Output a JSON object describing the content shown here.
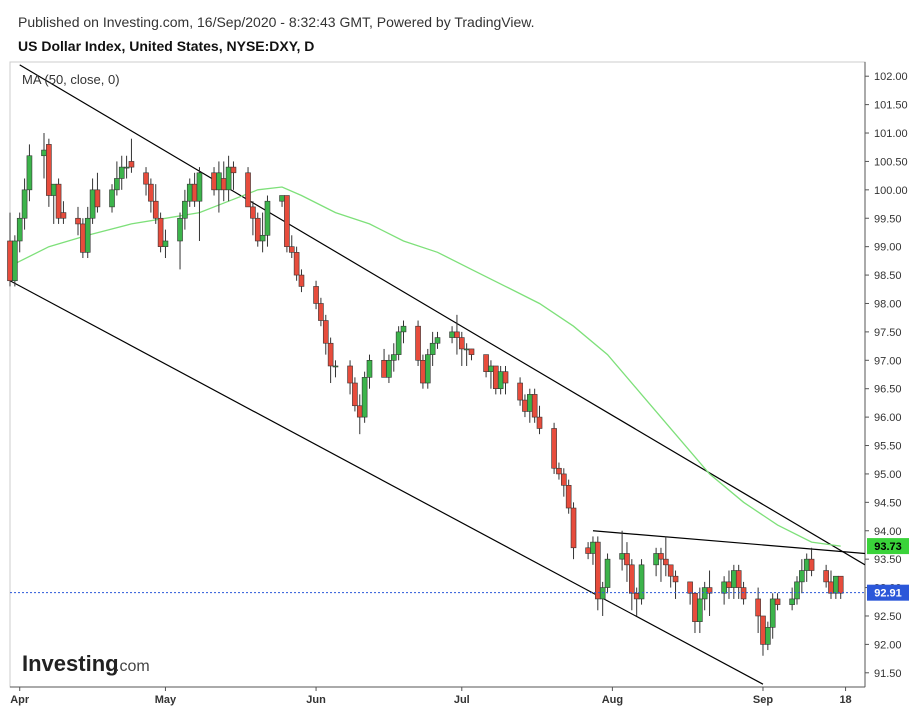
{
  "header": {
    "published": "Published on Investing.com, 16/Sep/2020 - 8:32:43 GMT, Powered by TradingView.",
    "title": "US Dollar Index, United States, NYSE:DXY, D"
  },
  "logo": {
    "main": "Investing",
    "suffix": ".com"
  },
  "chart_data": {
    "type": "candlestick",
    "indicator_label": "MA (50, close, 0)",
    "y_range": [
      91.25,
      102.25
    ],
    "y_ticks": [
      91.5,
      92.0,
      92.5,
      93.0,
      93.5,
      94.0,
      94.5,
      95.0,
      95.5,
      96.0,
      96.5,
      97.0,
      97.5,
      98.0,
      98.5,
      99.0,
      99.5,
      100.0,
      100.5,
      101.0,
      101.5,
      102.0
    ],
    "y_tick_labels": [
      "91.50",
      "92.00",
      "92.50",
      "93.00",
      "93.50",
      "94.00",
      "94.50",
      "95.00",
      "95.50",
      "96.00",
      "96.50",
      "97.00",
      "97.50",
      "98.00",
      "98.50",
      "99.00",
      "99.50",
      "100.00",
      "100.50",
      "101.00",
      "101.50",
      "102.00"
    ],
    "x_range": [
      "2020-03-30",
      "2020-09-22"
    ],
    "x_labels": [
      {
        "label": "Apr",
        "date": "2020-04-01"
      },
      {
        "label": "May",
        "date": "2020-05-01"
      },
      {
        "label": "Jun",
        "date": "2020-06-01"
      },
      {
        "label": "Jul",
        "date": "2020-07-01"
      },
      {
        "label": "Aug",
        "date": "2020-08-01"
      },
      {
        "label": "Sep",
        "date": "2020-09-01"
      },
      {
        "label": "18",
        "date": "2020-09-18"
      }
    ],
    "price_tags": [
      {
        "label": "93.73",
        "value": 93.73,
        "color": "#3ad33a",
        "text_color": "#000000"
      },
      {
        "label": "92.91",
        "value": 92.91,
        "color": "#2b57d9",
        "text_color": "#ffffff"
      }
    ],
    "last_price": 92.91,
    "colors": {
      "up": "#3cb44b",
      "down": "#e74c3c",
      "ma": "#7ee07a",
      "trendline": "#000000",
      "last_line": "#2b57d9"
    },
    "candles": [
      [
        "2020-03-30",
        99.1,
        99.6,
        98.3,
        98.4
      ],
      [
        "2020-03-31",
        98.4,
        99.2,
        98.3,
        99.1
      ],
      [
        "2020-04-01",
        99.1,
        99.6,
        98.9,
        99.5
      ],
      [
        "2020-04-02",
        99.5,
        100.2,
        99.3,
        100.0
      ],
      [
        "2020-04-03",
        100.0,
        100.8,
        99.8,
        100.6
      ],
      [
        "2020-04-06",
        100.6,
        101.0,
        100.2,
        100.7
      ],
      [
        "2020-04-07",
        100.8,
        100.9,
        99.7,
        99.9
      ],
      [
        "2020-04-08",
        99.9,
        100.1,
        99.4,
        100.1
      ],
      [
        "2020-04-09",
        100.1,
        100.2,
        99.4,
        99.5
      ],
      [
        "2020-04-10",
        99.6,
        99.8,
        99.4,
        99.5
      ],
      [
        "2020-04-13",
        99.5,
        99.7,
        99.2,
        99.4
      ],
      [
        "2020-04-14",
        99.4,
        99.5,
        98.8,
        98.9
      ],
      [
        "2020-04-15",
        98.9,
        99.7,
        98.8,
        99.5
      ],
      [
        "2020-04-16",
        99.5,
        100.2,
        99.4,
        100.0
      ],
      [
        "2020-04-17",
        100.0,
        100.3,
        99.6,
        99.7
      ],
      [
        "2020-04-20",
        99.7,
        100.1,
        99.6,
        100.0
      ],
      [
        "2020-04-21",
        100.0,
        100.5,
        99.9,
        100.2
      ],
      [
        "2020-04-22",
        100.2,
        100.6,
        100.0,
        100.4
      ],
      [
        "2020-04-23",
        100.4,
        100.6,
        100.2,
        100.4
      ],
      [
        "2020-04-24",
        100.5,
        100.9,
        100.3,
        100.4
      ],
      [
        "2020-04-27",
        100.3,
        100.4,
        99.9,
        100.1
      ],
      [
        "2020-04-28",
        100.1,
        100.2,
        99.6,
        99.8
      ],
      [
        "2020-04-29",
        99.8,
        100.1,
        99.4,
        99.5
      ],
      [
        "2020-04-30",
        99.5,
        99.6,
        98.9,
        99.0
      ],
      [
        "2020-05-01",
        99.0,
        99.3,
        98.8,
        99.1
      ],
      [
        "2020-05-04",
        99.1,
        99.6,
        98.6,
        99.5
      ],
      [
        "2020-05-05",
        99.5,
        100.0,
        99.3,
        99.8
      ],
      [
        "2020-05-06",
        99.8,
        100.2,
        99.7,
        100.1
      ],
      [
        "2020-05-07",
        100.1,
        100.3,
        99.7,
        99.8
      ],
      [
        "2020-05-08",
        99.8,
        100.4,
        99.1,
        100.3
      ],
      [
        "2020-05-11",
        100.3,
        100.4,
        99.9,
        100.0
      ],
      [
        "2020-05-12",
        100.0,
        100.5,
        99.6,
        100.3
      ],
      [
        "2020-05-13",
        100.2,
        100.5,
        99.8,
        100.0
      ],
      [
        "2020-05-14",
        100.0,
        100.6,
        99.8,
        100.4
      ],
      [
        "2020-05-15",
        100.4,
        100.5,
        100.0,
        100.3
      ],
      [
        "2020-05-18",
        100.3,
        100.4,
        99.7,
        99.7
      ],
      [
        "2020-05-19",
        99.7,
        99.8,
        99.2,
        99.5
      ],
      [
        "2020-05-20",
        99.5,
        99.6,
        99.0,
        99.1
      ],
      [
        "2020-05-21",
        99.1,
        99.6,
        98.9,
        99.2
      ],
      [
        "2020-05-22",
        99.2,
        99.9,
        99.0,
        99.8
      ],
      [
        "2020-05-25",
        99.8,
        99.9,
        99.7,
        99.9
      ],
      [
        "2020-05-26",
        99.9,
        99.9,
        98.9,
        99.0
      ],
      [
        "2020-05-27",
        99.0,
        99.2,
        98.8,
        98.9
      ],
      [
        "2020-05-28",
        98.9,
        99.0,
        98.4,
        98.5
      ],
      [
        "2020-05-29",
        98.5,
        98.6,
        98.2,
        98.3
      ],
      [
        "2020-06-01",
        98.3,
        98.4,
        97.9,
        98.0
      ],
      [
        "2020-06-02",
        98.0,
        98.1,
        97.6,
        97.7
      ],
      [
        "2020-06-03",
        97.7,
        97.8,
        97.1,
        97.3
      ],
      [
        "2020-06-04",
        97.3,
        97.4,
        96.6,
        96.9
      ],
      [
        "2020-06-05",
        96.9,
        97.0,
        96.7,
        96.9
      ],
      [
        "2020-06-08",
        96.9,
        97.0,
        96.4,
        96.6
      ],
      [
        "2020-06-09",
        96.6,
        96.7,
        96.1,
        96.2
      ],
      [
        "2020-06-10",
        96.2,
        96.4,
        95.7,
        96.0
      ],
      [
        "2020-06-11",
        96.0,
        96.8,
        95.9,
        96.7
      ],
      [
        "2020-06-12",
        96.7,
        97.1,
        96.5,
        97.0
      ],
      [
        "2020-06-15",
        97.0,
        97.2,
        96.7,
        96.7
      ],
      [
        "2020-06-16",
        96.7,
        97.1,
        96.6,
        97.0
      ],
      [
        "2020-06-17",
        97.0,
        97.3,
        96.8,
        97.1
      ],
      [
        "2020-06-18",
        97.1,
        97.6,
        97.0,
        97.5
      ],
      [
        "2020-06-19",
        97.5,
        97.7,
        97.3,
        97.6
      ],
      [
        "2020-06-22",
        97.6,
        97.7,
        96.9,
        97.0
      ],
      [
        "2020-06-23",
        97.0,
        97.1,
        96.5,
        96.6
      ],
      [
        "2020-06-24",
        96.6,
        97.2,
        96.5,
        97.1
      ],
      [
        "2020-06-25",
        97.1,
        97.5,
        96.9,
        97.3
      ],
      [
        "2020-06-26",
        97.3,
        97.5,
        97.2,
        97.4
      ],
      [
        "2020-06-29",
        97.4,
        97.6,
        97.3,
        97.5
      ],
      [
        "2020-06-30",
        97.5,
        97.8,
        97.1,
        97.4
      ],
      [
        "2020-07-01",
        97.4,
        97.5,
        96.9,
        97.2
      ],
      [
        "2020-07-02",
        97.2,
        97.3,
        96.9,
        97.2
      ],
      [
        "2020-07-03",
        97.2,
        97.2,
        97.0,
        97.1
      ],
      [
        "2020-07-06",
        97.1,
        97.1,
        96.7,
        96.8
      ],
      [
        "2020-07-07",
        96.8,
        97.0,
        96.5,
        96.9
      ],
      [
        "2020-07-08",
        96.9,
        96.9,
        96.4,
        96.5
      ],
      [
        "2020-07-09",
        96.5,
        96.9,
        96.4,
        96.8
      ],
      [
        "2020-07-10",
        96.8,
        96.9,
        96.4,
        96.6
      ],
      [
        "2020-07-13",
        96.6,
        96.7,
        96.2,
        96.3
      ],
      [
        "2020-07-14",
        96.3,
        96.4,
        96.0,
        96.1
      ],
      [
        "2020-07-15",
        96.1,
        96.5,
        95.9,
        96.4
      ],
      [
        "2020-07-16",
        96.4,
        96.5,
        95.9,
        96.0
      ],
      [
        "2020-07-17",
        96.0,
        96.2,
        95.7,
        95.8
      ],
      [
        "2020-07-20",
        95.8,
        95.9,
        95.0,
        95.1
      ],
      [
        "2020-07-21",
        95.1,
        95.2,
        94.9,
        95.0
      ],
      [
        "2020-07-22",
        95.0,
        95.1,
        94.6,
        94.8
      ],
      [
        "2020-07-23",
        94.8,
        94.9,
        94.3,
        94.4
      ],
      [
        "2020-07-24",
        94.4,
        94.5,
        93.5,
        93.7
      ],
      [
        "2020-07-27",
        93.7,
        93.8,
        93.5,
        93.6
      ],
      [
        "2020-07-28",
        93.6,
        93.9,
        93.4,
        93.8
      ],
      [
        "2020-07-29",
        93.8,
        93.9,
        92.6,
        92.8
      ],
      [
        "2020-07-30",
        92.8,
        93.1,
        92.5,
        93.0
      ],
      [
        "2020-07-31",
        93.0,
        93.6,
        92.9,
        93.5
      ],
      [
        "2020-08-03",
        93.5,
        94.0,
        93.3,
        93.6
      ],
      [
        "2020-08-04",
        93.6,
        93.8,
        93.1,
        93.4
      ],
      [
        "2020-08-05",
        93.4,
        93.5,
        92.6,
        92.9
      ],
      [
        "2020-08-06",
        92.9,
        93.0,
        92.5,
        92.8
      ],
      [
        "2020-08-07",
        92.8,
        93.5,
        92.7,
        93.4
      ],
      [
        "2020-08-10",
        93.4,
        93.7,
        93.2,
        93.6
      ],
      [
        "2020-08-11",
        93.6,
        93.7,
        93.1,
        93.5
      ],
      [
        "2020-08-12",
        93.5,
        93.9,
        93.2,
        93.4
      ],
      [
        "2020-08-13",
        93.4,
        93.4,
        93.0,
        93.2
      ],
      [
        "2020-08-14",
        93.2,
        93.3,
        92.8,
        93.1
      ],
      [
        "2020-08-17",
        93.1,
        93.1,
        92.7,
        92.9
      ],
      [
        "2020-08-18",
        92.9,
        92.9,
        92.2,
        92.4
      ],
      [
        "2020-08-19",
        92.4,
        93.0,
        92.2,
        92.8
      ],
      [
        "2020-08-20",
        92.8,
        93.1,
        92.6,
        93.0
      ],
      [
        "2020-08-21",
        93.0,
        93.3,
        92.5,
        92.9
      ],
      [
        "2020-08-24",
        92.9,
        93.2,
        92.7,
        93.1
      ],
      [
        "2020-08-25",
        93.1,
        93.3,
        92.8,
        93.0
      ],
      [
        "2020-08-26",
        93.0,
        93.4,
        92.8,
        93.3
      ],
      [
        "2020-08-27",
        93.3,
        93.4,
        92.8,
        93.0
      ],
      [
        "2020-08-28",
        93.0,
        93.1,
        92.7,
        92.8
      ],
      [
        "2020-08-31",
        92.8,
        93.0,
        92.2,
        92.5
      ],
      [
        "2020-09-01",
        92.5,
        92.5,
        91.8,
        92.0
      ],
      [
        "2020-09-02",
        92.0,
        92.4,
        91.9,
        92.3
      ],
      [
        "2020-09-03",
        92.3,
        92.9,
        92.1,
        92.8
      ],
      [
        "2020-09-04",
        92.8,
        92.9,
        92.6,
        92.7
      ],
      [
        "2020-09-07",
        92.7,
        93.0,
        92.6,
        92.8
      ],
      [
        "2020-09-08",
        92.8,
        93.2,
        92.7,
        93.1
      ],
      [
        "2020-09-09",
        93.1,
        93.5,
        92.9,
        93.3
      ],
      [
        "2020-09-10",
        93.3,
        93.6,
        93.1,
        93.5
      ],
      [
        "2020-09-11",
        93.5,
        93.7,
        93.2,
        93.3
      ],
      [
        "2020-09-14",
        93.3,
        93.4,
        93.0,
        93.1
      ],
      [
        "2020-09-15",
        93.1,
        93.3,
        92.8,
        92.9
      ],
      [
        "2020-09-16",
        92.9,
        93.2,
        92.8,
        93.2
      ],
      [
        "2020-09-17",
        93.2,
        93.2,
        92.8,
        92.9
      ]
    ],
    "moving_average": [
      [
        "2020-03-31",
        98.7
      ],
      [
        "2020-04-07",
        99.0
      ],
      [
        "2020-04-15",
        99.2
      ],
      [
        "2020-04-24",
        99.4
      ],
      [
        "2020-05-01",
        99.5
      ],
      [
        "2020-05-08",
        99.6
      ],
      [
        "2020-05-14",
        99.8
      ],
      [
        "2020-05-20",
        100.0
      ],
      [
        "2020-05-25",
        100.05
      ],
      [
        "2020-05-29",
        99.9
      ],
      [
        "2020-06-05",
        99.6
      ],
      [
        "2020-06-12",
        99.4
      ],
      [
        "2020-06-19",
        99.1
      ],
      [
        "2020-06-26",
        98.9
      ],
      [
        "2020-07-03",
        98.6
      ],
      [
        "2020-07-10",
        98.3
      ],
      [
        "2020-07-17",
        98.0
      ],
      [
        "2020-07-24",
        97.6
      ],
      [
        "2020-07-31",
        97.1
      ],
      [
        "2020-08-07",
        96.4
      ],
      [
        "2020-08-14",
        95.7
      ],
      [
        "2020-08-21",
        95.0
      ],
      [
        "2020-08-28",
        94.5
      ],
      [
        "2020-09-04",
        94.1
      ],
      [
        "2020-09-11",
        93.8
      ],
      [
        "2020-09-17",
        93.73
      ]
    ],
    "trendlines": [
      {
        "name": "upper",
        "from": [
          "2020-04-01",
          102.2
        ],
        "to": [
          "2020-09-22",
          93.4
        ]
      },
      {
        "name": "lower",
        "from": [
          "2020-03-30",
          98.4
        ],
        "to": [
          "2020-09-01",
          91.3
        ]
      },
      {
        "name": "flag",
        "from": [
          "2020-07-28",
          94.0
        ],
        "to": [
          "2020-09-22",
          93.6
        ]
      }
    ]
  }
}
